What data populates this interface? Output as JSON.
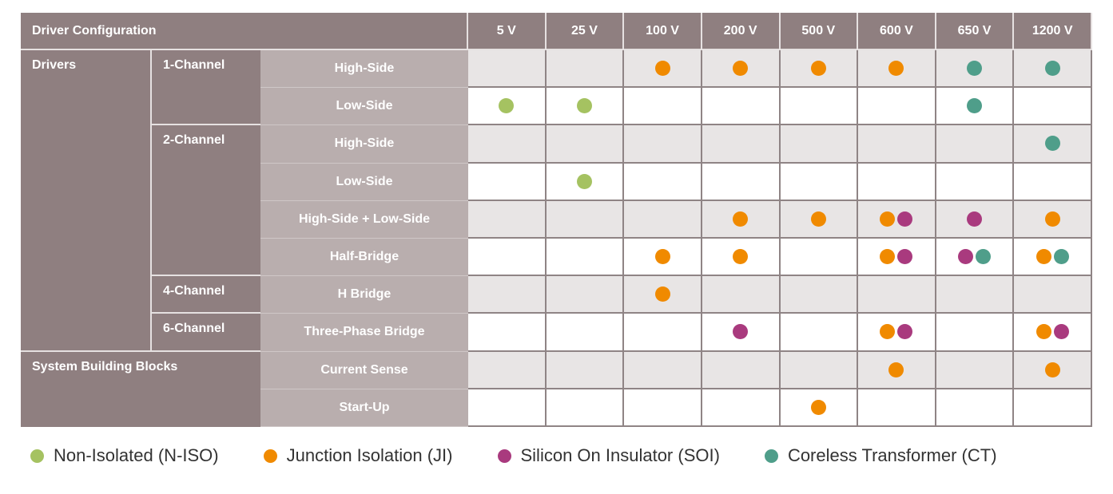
{
  "chart_data": {
    "type": "table",
    "title": "Driver Configuration",
    "columns": [
      "5 V",
      "25 V",
      "100 V",
      "200 V",
      "500 V",
      "600 V",
      "650 V",
      "1200 V"
    ],
    "groups": [
      {
        "label": "Drivers",
        "subgroups": [
          {
            "label": "1-Channel",
            "rows": [
              0,
              1
            ]
          },
          {
            "label": "2-Channel",
            "rows": [
              2,
              3,
              4,
              5
            ]
          },
          {
            "label": "4-Channel",
            "rows": [
              6
            ]
          },
          {
            "label": "6-Channel",
            "rows": [
              7
            ]
          }
        ]
      },
      {
        "label": "System Building Blocks",
        "rows": [
          8,
          9
        ]
      }
    ],
    "rows": [
      {
        "label": "High-Side",
        "cells": [
          "",
          "",
          "J",
          "J",
          "J",
          "J",
          "C",
          "C"
        ]
      },
      {
        "label": "Low-Side",
        "cells": [
          "G",
          "G",
          "",
          "",
          "",
          "",
          "C",
          ""
        ]
      },
      {
        "label": "High-Side",
        "cells": [
          "",
          "",
          "",
          "",
          "",
          "",
          "",
          "C"
        ]
      },
      {
        "label": "Low-Side",
        "cells": [
          "",
          "G",
          "",
          "",
          "",
          "",
          "",
          ""
        ]
      },
      {
        "label": "High-Side + Low-Side",
        "cells": [
          "",
          "",
          "",
          "J",
          "J",
          "JS",
          "S",
          "J"
        ]
      },
      {
        "label": "Half-Bridge",
        "cells": [
          "",
          "",
          "J",
          "J",
          "",
          "JS",
          "SC",
          "JC"
        ]
      },
      {
        "label": "H Bridge",
        "cells": [
          "",
          "",
          "J",
          "",
          "",
          "",
          "",
          ""
        ]
      },
      {
        "label": "Three-Phase Bridge",
        "cells": [
          "",
          "",
          "",
          "S",
          "",
          "JS",
          "",
          "JS"
        ]
      },
      {
        "label": "Current Sense",
        "cells": [
          "",
          "",
          "",
          "",
          "",
          "J",
          "",
          "J"
        ]
      },
      {
        "label": "Start-Up",
        "cells": [
          "",
          "",
          "",
          "",
          "J",
          "",
          "",
          ""
        ]
      }
    ],
    "legend": [
      {
        "code": "G",
        "label": "Non-Isolated (N-ISO)",
        "color": "#a5c261"
      },
      {
        "code": "J",
        "label": "Junction Isolation (JI)",
        "color": "#f08a00"
      },
      {
        "code": "S",
        "label": "Silicon On Insulator (SOI)",
        "color": "#a93a7e"
      },
      {
        "code": "C",
        "label": "Coreless Transformer (CT)",
        "color": "#4f9e8a"
      }
    ]
  }
}
